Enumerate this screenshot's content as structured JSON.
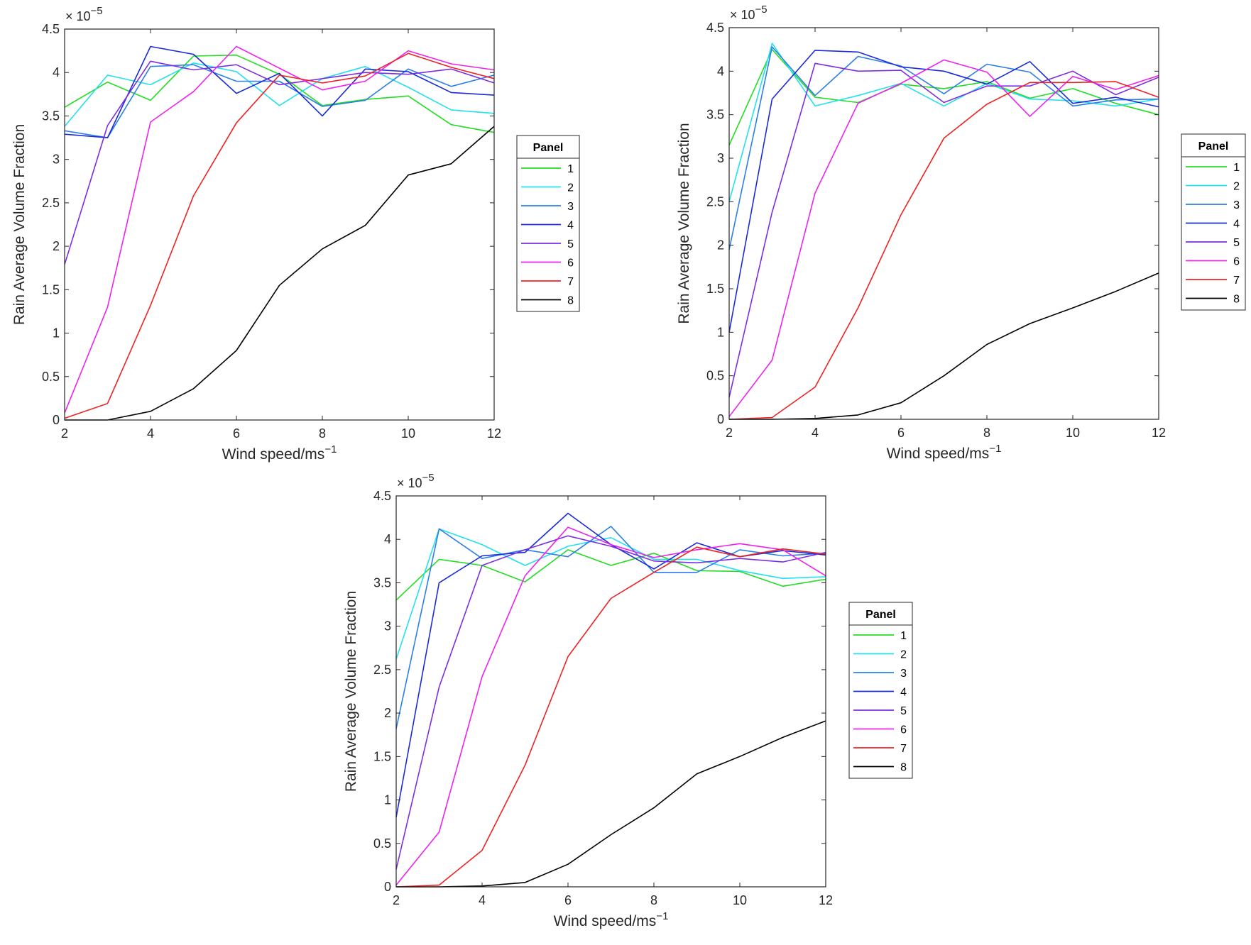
{
  "chart_data": [
    {
      "type": "line",
      "xlabel": "Wind speed/ms",
      "xlabel_superscript": "−1",
      "ylabel": "Rain Average Volume Fraction",
      "exponent_prefix": "× 10",
      "exponent_power": "−5",
      "xlim": [
        2,
        12
      ],
      "ylim": [
        0,
        4.5
      ],
      "xticks": [
        "2",
        "4",
        "6",
        "8",
        "10",
        "12"
      ],
      "yticks": [
        "0",
        "0.5",
        "1",
        "1.5",
        "2",
        "2.5",
        "3",
        "3.5",
        "4",
        "4.5"
      ],
      "legend_title": "Panel",
      "x": [
        2,
        3,
        4,
        5,
        6,
        7,
        8,
        9,
        10,
        11,
        12
      ],
      "series": [
        {
          "name": "1",
          "color": "#22dd22",
          "values": [
            3.6,
            3.89,
            3.68,
            4.19,
            4.2,
            3.98,
            3.62,
            3.69,
            3.73,
            3.4,
            3.31
          ]
        },
        {
          "name": "2",
          "color": "#22e0f0",
          "values": [
            3.38,
            3.97,
            3.86,
            4.11,
            4.01,
            3.62,
            3.93,
            4.07,
            3.83,
            3.57,
            3.53
          ]
        },
        {
          "name": "3",
          "color": "#2c7fe8",
          "values": [
            3.33,
            3.25,
            4.07,
            4.09,
            3.9,
            3.9,
            3.61,
            3.68,
            4.04,
            3.84,
            3.97
          ]
        },
        {
          "name": "4",
          "color": "#1a2bd9",
          "values": [
            3.29,
            3.25,
            4.3,
            4.21,
            3.76,
            3.99,
            3.5,
            4.04,
            4.01,
            3.77,
            3.74
          ]
        },
        {
          "name": "5",
          "color": "#7d2ee0",
          "values": [
            1.79,
            3.39,
            4.13,
            4.03,
            4.09,
            3.86,
            3.93,
            4.0,
            3.98,
            4.04,
            3.88
          ]
        },
        {
          "name": "6",
          "color": "#ee22ee",
          "values": [
            0.08,
            1.3,
            3.43,
            3.78,
            4.3,
            4.05,
            3.8,
            3.9,
            4.25,
            4.1,
            4.03
          ]
        },
        {
          "name": "7",
          "color": "#ee2222",
          "values": [
            0.02,
            0.19,
            1.32,
            2.58,
            3.42,
            3.97,
            3.88,
            3.96,
            4.22,
            4.06,
            3.93
          ]
        },
        {
          "name": "8",
          "color": "#000000",
          "values": [
            0.0,
            0.0,
            0.1,
            0.36,
            0.8,
            1.55,
            1.97,
            2.24,
            2.82,
            2.95,
            3.38
          ]
        }
      ]
    },
    {
      "type": "line",
      "xlabel": "Wind speed/ms",
      "xlabel_superscript": "−1",
      "ylabel": "Rain Average Volume Fraction",
      "exponent_prefix": "× 10",
      "exponent_power": "−5",
      "xlim": [
        2,
        12
      ],
      "ylim": [
        0,
        4.5
      ],
      "xticks": [
        "2",
        "4",
        "6",
        "8",
        "10",
        "12"
      ],
      "yticks": [
        "0",
        "0.5",
        "1",
        "1.5",
        "2",
        "2.5",
        "3",
        "3.5",
        "4",
        "4.5"
      ],
      "legend_title": "Panel",
      "x": [
        2,
        3,
        4,
        5,
        6,
        7,
        8,
        9,
        10,
        11,
        12
      ],
      "series": [
        {
          "name": "1",
          "color": "#22dd22",
          "values": [
            3.15,
            4.25,
            3.7,
            3.64,
            3.85,
            3.8,
            3.88,
            3.69,
            3.8,
            3.63,
            3.5
          ]
        },
        {
          "name": "2",
          "color": "#22e0f0",
          "values": [
            2.5,
            4.32,
            3.6,
            3.72,
            3.86,
            3.6,
            3.86,
            3.68,
            3.66,
            3.6,
            3.68
          ]
        },
        {
          "name": "3",
          "color": "#2c7fe8",
          "values": [
            1.95,
            4.28,
            3.72,
            4.17,
            4.06,
            3.74,
            4.08,
            3.99,
            3.6,
            3.67,
            3.68
          ]
        },
        {
          "name": "4",
          "color": "#1a2bd9",
          "values": [
            1.0,
            3.68,
            4.24,
            4.22,
            4.05,
            4.0,
            3.85,
            4.11,
            3.63,
            3.7,
            3.59
          ]
        },
        {
          "name": "5",
          "color": "#7d2ee0",
          "values": [
            0.25,
            2.38,
            4.09,
            4.0,
            4.01,
            3.64,
            3.83,
            3.83,
            4.0,
            3.73,
            3.93
          ]
        },
        {
          "name": "6",
          "color": "#ee22ee",
          "values": [
            0.03,
            0.68,
            2.6,
            3.63,
            3.86,
            4.13,
            3.99,
            3.48,
            3.94,
            3.79,
            3.95
          ]
        },
        {
          "name": "7",
          "color": "#ee2222",
          "values": [
            0.0,
            0.02,
            0.37,
            1.28,
            2.35,
            3.23,
            3.62,
            3.87,
            3.87,
            3.88,
            3.7
          ]
        },
        {
          "name": "8",
          "color": "#000000",
          "values": [
            0.0,
            0.0,
            0.01,
            0.05,
            0.19,
            0.5,
            0.86,
            1.1,
            1.28,
            1.47,
            1.68
          ]
        }
      ]
    },
    {
      "type": "line",
      "xlabel": "Wind speed/ms",
      "xlabel_superscript": "−1",
      "ylabel": "Rain Average Volume Fraction",
      "exponent_prefix": "× 10",
      "exponent_power": "−5",
      "xlim": [
        2,
        12
      ],
      "ylim": [
        0,
        4.5
      ],
      "xticks": [
        "2",
        "4",
        "6",
        "8",
        "10",
        "12"
      ],
      "yticks": [
        "0",
        "0.5",
        "1",
        "1.5",
        "2",
        "2.5",
        "3",
        "3.5",
        "4",
        "4.5"
      ],
      "legend_title": "Panel",
      "x": [
        2,
        3,
        4,
        5,
        6,
        7,
        8,
        9,
        10,
        11,
        12
      ],
      "series": [
        {
          "name": "1",
          "color": "#22dd22",
          "values": [
            3.3,
            3.77,
            3.7,
            3.51,
            3.88,
            3.7,
            3.84,
            3.64,
            3.63,
            3.46,
            3.54
          ]
        },
        {
          "name": "2",
          "color": "#22e0f0",
          "values": [
            2.62,
            4.12,
            3.94,
            3.7,
            3.92,
            4.02,
            3.77,
            3.77,
            3.64,
            3.55,
            3.57
          ]
        },
        {
          "name": "3",
          "color": "#2c7fe8",
          "values": [
            1.82,
            4.12,
            3.78,
            3.88,
            3.8,
            4.15,
            3.62,
            3.62,
            3.88,
            3.81,
            3.84
          ]
        },
        {
          "name": "4",
          "color": "#1a2bd9",
          "values": [
            0.8,
            3.5,
            3.81,
            3.85,
            4.3,
            3.94,
            3.66,
            3.96,
            3.8,
            3.87,
            3.82
          ]
        },
        {
          "name": "5",
          "color": "#7d2ee0",
          "values": [
            0.2,
            2.3,
            3.7,
            3.88,
            4.04,
            3.92,
            3.75,
            3.73,
            3.78,
            3.74,
            3.85
          ]
        },
        {
          "name": "6",
          "color": "#ee22ee",
          "values": [
            0.02,
            0.63,
            2.42,
            3.58,
            4.14,
            3.94,
            3.79,
            3.88,
            3.95,
            3.88,
            3.58
          ]
        },
        {
          "name": "7",
          "color": "#ee2222",
          "values": [
            0.0,
            0.02,
            0.42,
            1.4,
            2.65,
            3.32,
            3.62,
            3.91,
            3.8,
            3.89,
            3.83
          ]
        },
        {
          "name": "8",
          "color": "#000000",
          "values": [
            0.0,
            0.0,
            0.01,
            0.05,
            0.26,
            0.6,
            0.91,
            1.3,
            1.5,
            1.72,
            1.91
          ]
        }
      ]
    }
  ]
}
